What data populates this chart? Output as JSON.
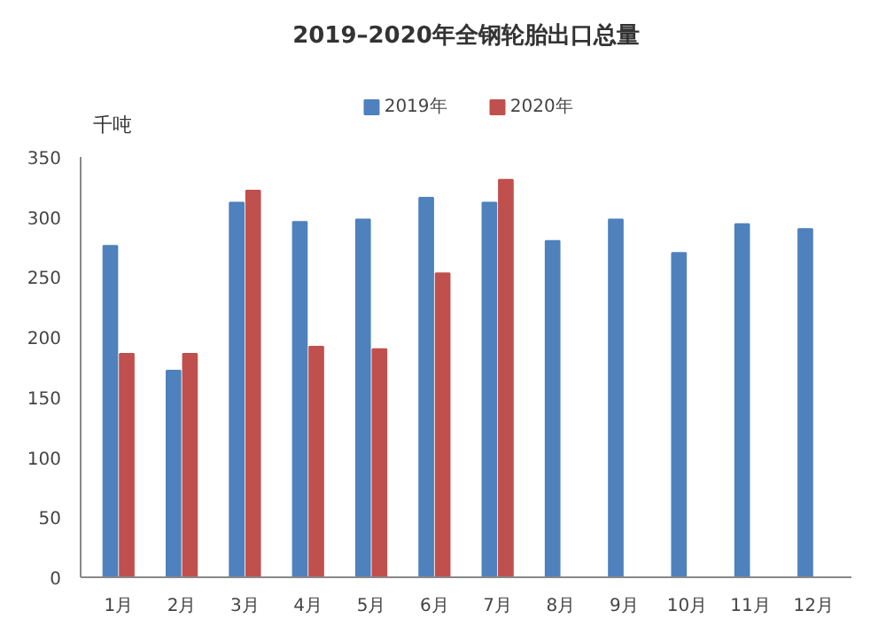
{
  "chart_data": {
    "type": "bar",
    "title": "2019–2020年全钢轮胎出口总量",
    "ylabel": "千吨",
    "categories": [
      "1月",
      "2月",
      "3月",
      "4月",
      "5月",
      "6月",
      "7月",
      "8月",
      "9月",
      "10月",
      "11月",
      "12月"
    ],
    "series": [
      {
        "name": "2019年",
        "color": "#4f81bd",
        "values": [
          276,
          172,
          312,
          296,
          298,
          316,
          312,
          280,
          298,
          270,
          294,
          290
        ]
      },
      {
        "name": "2020年",
        "color": "#c0504d",
        "values": [
          186,
          186,
          322,
          192,
          190,
          253,
          331,
          null,
          null,
          null,
          null,
          null
        ]
      }
    ],
    "ylim": [
      0,
      350
    ],
    "yticks": [
      0,
      50,
      100,
      150,
      200,
      250,
      300,
      350
    ],
    "grid": false,
    "legend": "top"
  }
}
